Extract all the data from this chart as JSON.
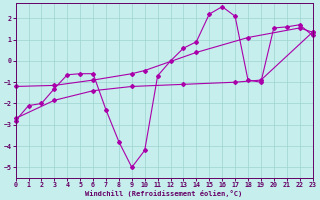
{
  "xlabel": "Windchill (Refroidissement éolien,°C)",
  "background_color": "#c5eeed",
  "grid_color": "#9dd4d0",
  "line_color": "#aa00aa",
  "xlim": [
    0,
    23
  ],
  "ylim": [
    -5.5,
    2.7
  ],
  "xticks": [
    0,
    1,
    2,
    3,
    4,
    5,
    6,
    7,
    8,
    9,
    10,
    11,
    12,
    13,
    14,
    15,
    16,
    17,
    18,
    19,
    20,
    21,
    22,
    23
  ],
  "yticks": [
    -5,
    -4,
    -3,
    -2,
    -1,
    0,
    1,
    2
  ],
  "line1_x": [
    0,
    1,
    2,
    3,
    4,
    5,
    6,
    7,
    8,
    9,
    10,
    11,
    12,
    13,
    14,
    15,
    16,
    17,
    18,
    19,
    20,
    21,
    22,
    23
  ],
  "line1_y": [
    -2.8,
    -2.1,
    -2.0,
    -1.3,
    -0.65,
    -0.6,
    -0.6,
    -2.3,
    -3.8,
    -5.0,
    -4.2,
    -0.7,
    0.0,
    0.6,
    0.9,
    2.2,
    2.55,
    2.1,
    -0.9,
    -1.0,
    1.55,
    1.6,
    1.7,
    1.2
  ],
  "line2_x": [
    0,
    3,
    6,
    9,
    10,
    14,
    18,
    22,
    23
  ],
  "line2_y": [
    -1.2,
    -1.15,
    -0.9,
    -0.6,
    -0.45,
    0.4,
    1.1,
    1.55,
    1.35
  ],
  "line3_x": [
    0,
    3,
    6,
    9,
    13,
    17,
    19,
    23
  ],
  "line3_y": [
    -2.7,
    -1.85,
    -1.4,
    -1.2,
    -1.1,
    -1.0,
    -0.9,
    1.35
  ]
}
